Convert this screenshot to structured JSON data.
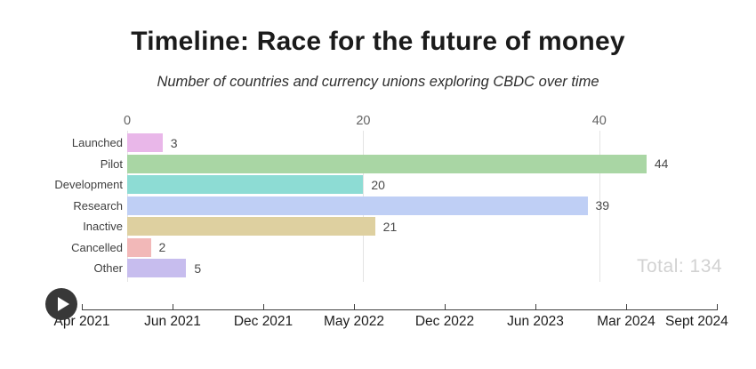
{
  "header": {
    "title": "Timeline: Race for the future of money",
    "subtitle": "Number of countries and currency unions exploring CBDC over time"
  },
  "chart_data": {
    "type": "bar",
    "orientation": "horizontal",
    "title": "Timeline: Race for the future of money",
    "subtitle": "Number of countries and currency unions exploring CBDC over time",
    "categories": [
      "Launched",
      "Pilot",
      "Development",
      "Research",
      "Inactive",
      "Cancelled",
      "Other"
    ],
    "values": [
      3,
      44,
      20,
      39,
      21,
      2,
      5
    ],
    "bar_colors": [
      "#e9b7e9",
      "#a9d6a4",
      "#8ddcd4",
      "#bfcff5",
      "#ded0a0",
      "#f2b8b8",
      "#c7bdee"
    ],
    "x_ticks": [
      0,
      20,
      40
    ],
    "xlim": [
      0,
      52
    ],
    "grid": true,
    "legend": "none",
    "value_labels": true,
    "total_label": "Total: 134"
  },
  "timeline": {
    "tick_labels": [
      "Apr 2021",
      "Jun 2021",
      "Dec 2021",
      "May 2022",
      "Dec 2022",
      "Jun 2023",
      "Mar 2024",
      "Sept 2024"
    ],
    "play_icon": "play-triangle"
  },
  "colors": {
    "background": "#ffffff",
    "title": "#1b1b1b",
    "grid": "#e4e4e4",
    "axis_line": "#3f3f3f",
    "total_label": "#d2d2d2",
    "play_button": "#383838"
  }
}
